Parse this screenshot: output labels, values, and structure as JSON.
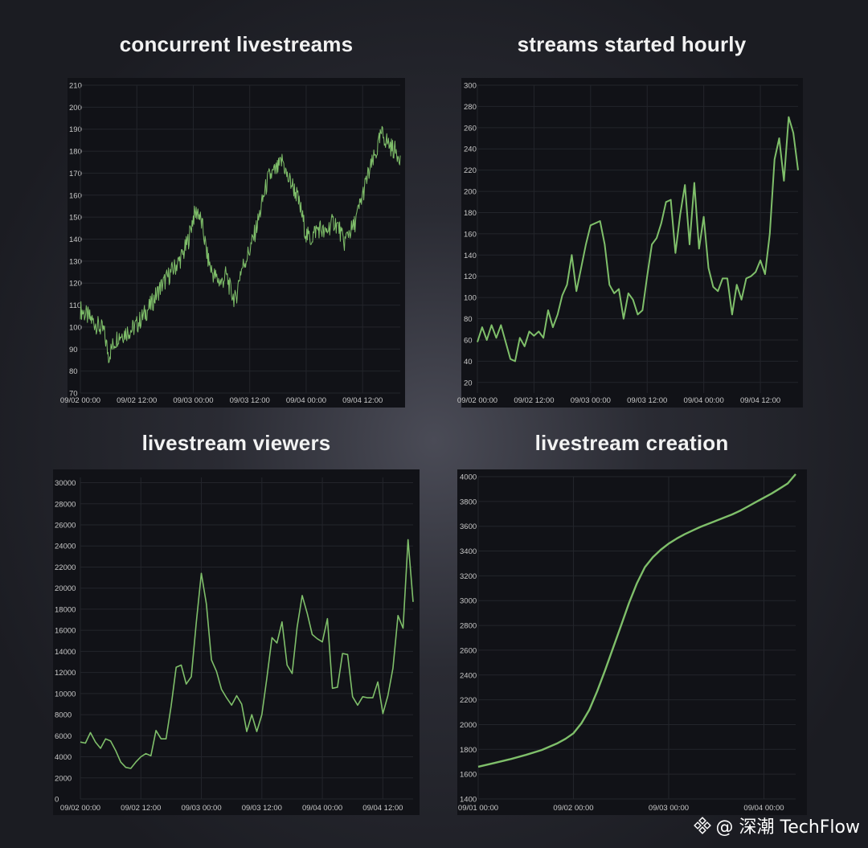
{
  "colors": {
    "line": "#7fbf6a",
    "grid": "#23252b",
    "tick": "#c9c9c9",
    "panel": "#111217"
  },
  "watermark": {
    "text": "@ 深潮 TechFlow"
  },
  "chart_data": [
    {
      "type": "line",
      "title": "concurrent livestreams",
      "ylim": [
        70,
        210
      ],
      "yticks": [
        "210",
        "200",
        "190",
        "180",
        "170",
        "160",
        "150",
        "140",
        "130",
        "120",
        "110",
        "100",
        "90",
        "80",
        "70"
      ],
      "xlim": [
        0,
        68
      ],
      "xticks": [
        {
          "x": 0,
          "label": "09/02 00:00"
        },
        {
          "x": 12,
          "label": "09/02 12:00"
        },
        {
          "x": 24,
          "label": "09/03 00:00"
        },
        {
          "x": 36,
          "label": "09/03 12:00"
        },
        {
          "x": 48,
          "label": "09/04 00:00"
        },
        {
          "x": 60,
          "label": "09/04 12:00"
        }
      ],
      "x": [
        0,
        1,
        2,
        3,
        4,
        5,
        6,
        7,
        8,
        9,
        10,
        11,
        12,
        13,
        14,
        15,
        16,
        17,
        18,
        19,
        20,
        21,
        22,
        23,
        24,
        25,
        26,
        27,
        28,
        29,
        30,
        31,
        32,
        33,
        34,
        35,
        36,
        37,
        38,
        39,
        40,
        41,
        42,
        43,
        44,
        45,
        46,
        47,
        48,
        49,
        50,
        51,
        52,
        53,
        54,
        55,
        56,
        57,
        58,
        59,
        60,
        61,
        62,
        63,
        64,
        65,
        66,
        67,
        68
      ],
      "y": [
        108,
        106,
        104,
        102,
        100,
        98,
        87,
        92,
        96,
        97,
        98,
        99,
        101,
        104,
        107,
        110,
        114,
        118,
        121,
        124,
        127,
        130,
        134,
        140,
        150,
        153,
        145,
        132,
        125,
        122,
        120,
        124,
        116,
        112,
        125,
        130,
        135,
        142,
        150,
        160,
        168,
        170,
        172,
        176,
        168,
        165,
        160,
        152,
        142,
        140,
        144,
        145,
        142,
        146,
        148,
        145,
        138,
        143,
        145,
        152,
        160,
        168,
        174,
        180,
        188,
        185,
        182,
        180,
        178
      ],
      "grid": true
    },
    {
      "type": "line",
      "title": "streams started hourly",
      "ylim": [
        10,
        300
      ],
      "yticks": [
        "300",
        "280",
        "260",
        "240",
        "220",
        "200",
        "180",
        "160",
        "140",
        "120",
        "100",
        "80",
        "60",
        "40",
        "20"
      ],
      "xlim": [
        0,
        68
      ],
      "xticks": [
        {
          "x": 0,
          "label": "09/02 00:00"
        },
        {
          "x": 12,
          "label": "09/02 12:00"
        },
        {
          "x": 24,
          "label": "09/03 00:00"
        },
        {
          "x": 36,
          "label": "09/03 12:00"
        },
        {
          "x": 48,
          "label": "09/04 00:00"
        },
        {
          "x": 60,
          "label": "09/04 12:00"
        }
      ],
      "x": [
        0,
        1,
        2,
        3,
        4,
        5,
        6,
        7,
        8,
        9,
        10,
        11,
        12,
        13,
        14,
        15,
        16,
        17,
        18,
        19,
        20,
        21,
        22,
        23,
        24,
        25,
        26,
        27,
        28,
        29,
        30,
        31,
        32,
        33,
        34,
        35,
        36,
        37,
        38,
        39,
        40,
        41,
        42,
        43,
        44,
        45,
        46,
        47,
        48,
        49,
        50,
        51,
        52,
        53,
        54,
        55,
        56,
        57,
        58,
        59,
        60,
        61,
        62,
        63,
        64,
        65,
        66,
        67,
        68
      ],
      "y": [
        58,
        72,
        60,
        74,
        62,
        74,
        58,
        42,
        40,
        62,
        54,
        68,
        64,
        68,
        62,
        88,
        72,
        84,
        102,
        112,
        140,
        106,
        128,
        150,
        168,
        170,
        172,
        150,
        112,
        104,
        108,
        80,
        104,
        98,
        84,
        88,
        120,
        150,
        156,
        170,
        190,
        192,
        142,
        178,
        206,
        150,
        208,
        146,
        176,
        128,
        110,
        106,
        118,
        118,
        84,
        112,
        98,
        118,
        120,
        124,
        135,
        122,
        160,
        230,
        250,
        210,
        270,
        255,
        220
      ],
      "grid": true
    },
    {
      "type": "line",
      "title": "livestream viewers",
      "ylim": [
        0,
        30500
      ],
      "yticks": [
        "30000",
        "28000",
        "26000",
        "24000",
        "22000",
        "20000",
        "18000",
        "16000",
        "14000",
        "12000",
        "10000",
        "8000",
        "6000",
        "4000",
        "2000",
        "0"
      ],
      "xlim": [
        0,
        66
      ],
      "xticks": [
        {
          "x": 0,
          "label": "09/02 00:00"
        },
        {
          "x": 12,
          "label": "09/02 12:00"
        },
        {
          "x": 24,
          "label": "09/03 00:00"
        },
        {
          "x": 36,
          "label": "09/03 12:00"
        },
        {
          "x": 48,
          "label": "09/04 00:00"
        },
        {
          "x": 60,
          "label": "09/04 12:00"
        }
      ],
      "x": [
        0,
        1,
        2,
        3,
        4,
        5,
        6,
        7,
        8,
        9,
        10,
        11,
        12,
        13,
        14,
        15,
        16,
        17,
        18,
        19,
        20,
        21,
        22,
        23,
        24,
        25,
        26,
        27,
        28,
        29,
        30,
        31,
        32,
        33,
        34,
        35,
        36,
        37,
        38,
        39,
        40,
        41,
        42,
        43,
        44,
        45,
        46,
        47,
        48,
        49,
        50,
        51,
        52,
        53,
        54,
        55,
        56,
        57,
        58,
        59,
        60,
        61,
        62,
        63,
        64,
        65,
        66
      ],
      "y": [
        5400,
        5300,
        6300,
        5400,
        4800,
        5700,
        5500,
        4600,
        3500,
        3000,
        2900,
        3500,
        4000,
        4300,
        4100,
        6500,
        5700,
        5700,
        8800,
        12500,
        12700,
        10900,
        11600,
        16800,
        21400,
        18500,
        13200,
        12100,
        10400,
        9600,
        8900,
        9800,
        9000,
        6400,
        8000,
        6400,
        8000,
        11500,
        15300,
        14800,
        16800,
        12700,
        11900,
        16300,
        19300,
        17600,
        15600,
        15200,
        14900,
        17100,
        10500,
        10600,
        13800,
        13700,
        9700,
        8900,
        9700,
        9600,
        9600,
        11100,
        8100,
        9800,
        12400,
        17400,
        16200,
        24600,
        18700
      ]
    },
    {
      "type": "line",
      "title": "livestream creation",
      "ylim": [
        1400,
        4000
      ],
      "yticks": [
        "4000",
        "3800",
        "3600",
        "3400",
        "3200",
        "3000",
        "2800",
        "2600",
        "2400",
        "2200",
        "2000",
        "1800",
        "1600",
        "1400"
      ],
      "xlim": [
        0,
        80
      ],
      "xticks": [
        {
          "x": 0,
          "label": "09/01 00:00"
        },
        {
          "x": 24,
          "label": "09/02 00:00"
        },
        {
          "x": 48,
          "label": "09/03 00:00"
        },
        {
          "x": 72,
          "label": "09/04 00:00"
        }
      ],
      "x": [
        0,
        4,
        8,
        12,
        16,
        20,
        22,
        24,
        26,
        28,
        30,
        32,
        34,
        36,
        38,
        40,
        42,
        44,
        46,
        48,
        50,
        52,
        54,
        56,
        58,
        60,
        62,
        64,
        66,
        68,
        70,
        72,
        74,
        76,
        78,
        80
      ],
      "y": [
        1660,
        1690,
        1720,
        1755,
        1795,
        1850,
        1885,
        1930,
        2010,
        2120,
        2270,
        2440,
        2620,
        2800,
        2980,
        3140,
        3270,
        3350,
        3410,
        3460,
        3500,
        3535,
        3565,
        3595,
        3620,
        3645,
        3670,
        3695,
        3725,
        3760,
        3795,
        3830,
        3865,
        3905,
        3945,
        4020
      ],
      "grid": true
    }
  ]
}
